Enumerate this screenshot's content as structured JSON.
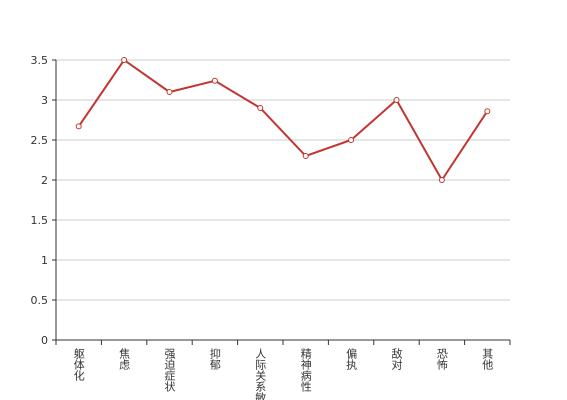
{
  "chart_data": {
    "type": "line",
    "categories": [
      "躯体化",
      "焦虑",
      "强迫症状",
      "抑郁",
      "人际关系敏感",
      "精神病性",
      "偏执",
      "敌对",
      "恐怖",
      "其他"
    ],
    "series": [
      {
        "color": "#c23531",
        "values": [
          2.67,
          3.5,
          3.1,
          3.24,
          2.9,
          2.3,
          2.5,
          3.0,
          2.0,
          2.86
        ]
      }
    ],
    "ylim": [
      0,
      3.5
    ],
    "yticks": [
      0,
      0.5,
      1,
      1.5,
      2,
      2.5,
      3,
      3.5
    ],
    "grid": true
  }
}
